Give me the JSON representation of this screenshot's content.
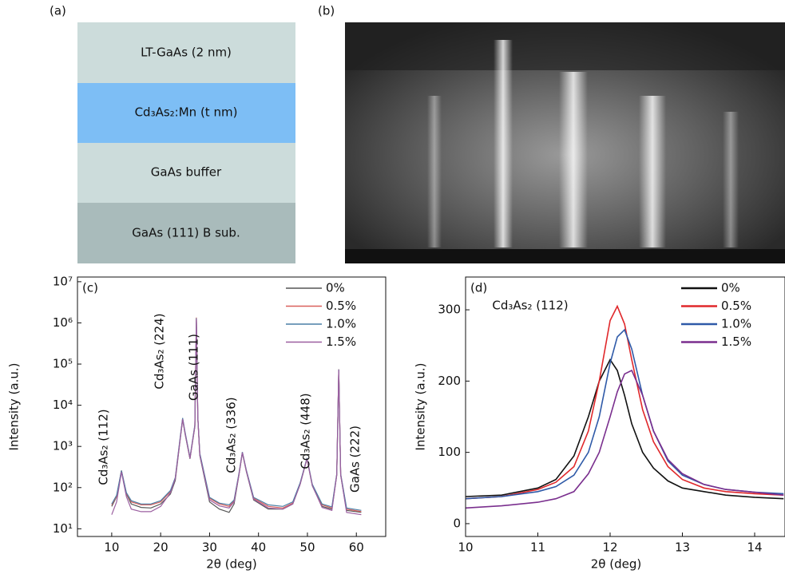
{
  "panel_labels": [
    "(a)",
    "(b)"
  ],
  "layers": [
    "LT-GaAs (2 nm)",
    "Cd₃As₂:Mn (t nm)",
    "GaAs buffer",
    "GaAs (111) B sub."
  ],
  "chart_data": [
    {
      "type": "line",
      "panel_label": "(c)",
      "xlabel": "2θ (deg)",
      "ylabel": "Intensity (a.u.)",
      "log_y": true,
      "legend": "upper right",
      "xlim": [
        3,
        66
      ],
      "xticks": [
        10,
        20,
        30,
        40,
        50,
        60
      ],
      "ylim": [
        6.5,
        13000000
      ],
      "yticks": [
        {
          "value": 10,
          "label": "10¹"
        },
        {
          "value": 100,
          "label": "10²"
        },
        {
          "value": 1000,
          "label": "10³"
        },
        {
          "value": 10000,
          "label": "10⁴"
        },
        {
          "value": 100000,
          "label": "10⁵"
        },
        {
          "value": 1000000,
          "label": "10⁶"
        },
        {
          "value": 10000000,
          "label": "10⁷"
        }
      ],
      "annotations": [
        {
          "text": "Cd₃As₂ (112)",
          "color": "#111"
        },
        {
          "text": "Cd₃As₂ (224)",
          "color": "#111"
        },
        {
          "text": "GaAs (111)",
          "color": "#e0282b"
        },
        {
          "text": "Cd₃As₂ (336)",
          "color": "#111"
        },
        {
          "text": "Cd₃As₂ (448)",
          "color": "#111"
        },
        {
          "text": "GaAs (222)",
          "color": "#e0282b"
        }
      ],
      "x": [
        10,
        11,
        12,
        13,
        14,
        16,
        18,
        20,
        22,
        23,
        24,
        24.5,
        25,
        26,
        27,
        27.3,
        27.6,
        28,
        30,
        32,
        34,
        35,
        36,
        36.7,
        37.5,
        39,
        42,
        45,
        47,
        48.5,
        49.9,
        51,
        53,
        55,
        56,
        56.4,
        56.8,
        58,
        61
      ],
      "series": [
        {
          "name": "0%",
          "color": "#555555",
          "values": [
            35,
            60,
            260,
            70,
            40,
            33,
            32,
            40,
            70,
            150,
            1500,
            4500,
            2000,
            500,
            3000,
            1300000,
            5000,
            600,
            45,
            30,
            25,
            40,
            200,
            700,
            250,
            50,
            30,
            30,
            40,
            120,
            500,
            110,
            35,
            30,
            200,
            70000,
            200,
            28,
            25
          ]
        },
        {
          "name": "0.5%",
          "color": "#d9605c",
          "values": [
            38,
            62,
            250,
            72,
            45,
            38,
            38,
            45,
            80,
            170,
            1600,
            4700,
            2100,
            520,
            3200,
            1350000,
            5200,
            650,
            55,
            40,
            35,
            48,
            210,
            720,
            260,
            55,
            35,
            32,
            42,
            125,
            510,
            115,
            38,
            32,
            210,
            75000,
            210,
            30,
            26
          ]
        },
        {
          "name": "1.0%",
          "color": "#4a7fa6",
          "values": [
            40,
            65,
            255,
            75,
            48,
            40,
            40,
            48,
            85,
            175,
            1700,
            4900,
            2200,
            540,
            3300,
            1300000,
            5300,
            680,
            58,
            42,
            38,
            50,
            220,
            730,
            270,
            58,
            38,
            35,
            45,
            130,
            520,
            120,
            40,
            34,
            215,
            74000,
            215,
            32,
            28
          ]
        },
        {
          "name": "1.5%",
          "color": "#9b5fa0",
          "values": [
            22,
            45,
            240,
            60,
            30,
            26,
            26,
            35,
            75,
            165,
            1550,
            4600,
            2050,
            510,
            3100,
            1250000,
            5100,
            620,
            50,
            36,
            32,
            45,
            205,
            710,
            255,
            52,
            32,
            30,
            40,
            120,
            505,
            112,
            33,
            28,
            205,
            72000,
            205,
            25,
            22
          ]
        }
      ]
    },
    {
      "type": "line",
      "panel_label": "(d)",
      "xlabel": "2θ (deg)",
      "ylabel": "Intensity (a.u.)",
      "log_y": false,
      "legend": "upper right",
      "xlim": [
        10,
        14.42
      ],
      "xticks": [
        10,
        11,
        12,
        13,
        14
      ],
      "ylim": [
        -18,
        346
      ],
      "yticks": [
        0,
        100,
        200,
        300
      ],
      "annotations": [
        {
          "text": "Cd₃As₂ (112)",
          "color": "#111"
        }
      ],
      "x": [
        10,
        10.5,
        11,
        11.25,
        11.5,
        11.7,
        11.85,
        12,
        12.1,
        12.2,
        12.3,
        12.45,
        12.6,
        12.8,
        13,
        13.3,
        13.6,
        14,
        14.4
      ],
      "series": [
        {
          "name": "0%",
          "color": "#111111",
          "values": [
            38,
            40,
            50,
            62,
            95,
            150,
            200,
            230,
            215,
            180,
            140,
            100,
            78,
            60,
            50,
            45,
            40,
            37,
            35
          ]
        },
        {
          "name": "0.5%",
          "color": "#e0282b",
          "values": [
            35,
            38,
            48,
            58,
            80,
            130,
            200,
            285,
            305,
            280,
            230,
            160,
            115,
            80,
            62,
            50,
            45,
            42,
            40
          ]
        },
        {
          "name": "1.0%",
          "color": "#2f5aa8",
          "values": [
            35,
            38,
            45,
            52,
            68,
            100,
            150,
            225,
            262,
            272,
            245,
            180,
            130,
            88,
            68,
            55,
            48,
            44,
            42
          ]
        },
        {
          "name": "1.5%",
          "color": "#7a2f8e",
          "values": [
            22,
            25,
            30,
            35,
            45,
            70,
            100,
            150,
            185,
            210,
            215,
            180,
            130,
            90,
            70,
            55,
            48,
            44,
            40
          ]
        }
      ]
    }
  ]
}
